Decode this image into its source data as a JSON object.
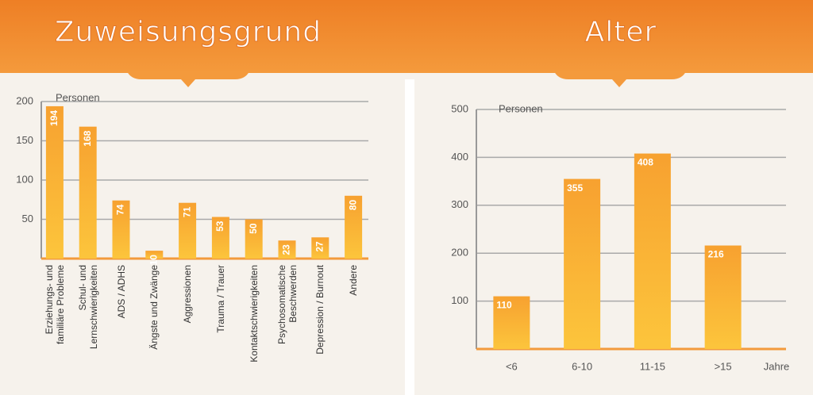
{
  "chart_data": [
    {
      "type": "bar",
      "title": "Zuweisungsgrund",
      "y_label": "Personen",
      "categories": [
        "Erziehungs- und\nfamiliäre Probleme",
        "Schul- und\nLernschwierigkeiten",
        "ADS / ADHS",
        "Ängste und Zwänge",
        "Aggressionen",
        "Trauma / Trauer",
        "Kontaktschwierigkeiten",
        "Psychosomatische\nBeschwerden",
        "Depression / Burnout",
        "Andere"
      ],
      "values": [
        194,
        168,
        74,
        10,
        71,
        53,
        50,
        23,
        27,
        80
      ],
      "color": "#f9b233",
      "ylim": [
        0,
        200
      ],
      "yticks": [
        50,
        100,
        150,
        200
      ],
      "grid": true
    },
    {
      "type": "bar",
      "title": "Alter",
      "y_label": "Personen",
      "x_label": "Jahre",
      "categories": [
        "<6",
        "6-10",
        "11-15",
        ">15"
      ],
      "values": [
        110,
        355,
        408,
        216
      ],
      "color": "#f9b233",
      "ylim": [
        0,
        500
      ],
      "yticks": [
        100,
        200,
        300,
        400,
        500
      ],
      "grid": true
    }
  ]
}
